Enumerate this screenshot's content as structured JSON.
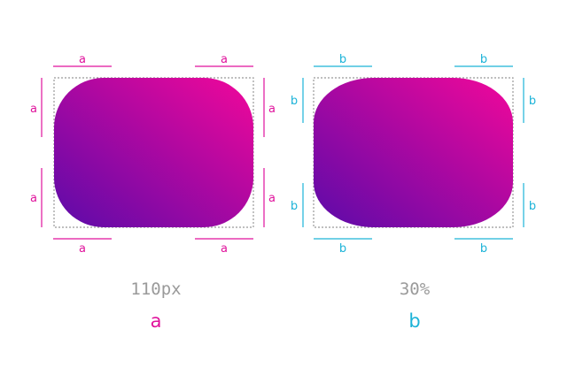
{
  "colors": {
    "a_accent": "#e0129c",
    "b_accent": "#1cb3d8",
    "gradient_start": "#5b0aa9",
    "gradient_end": "#f2079a",
    "outline": "#999999"
  },
  "examples": [
    {
      "value": "110px",
      "name": "a",
      "marker": "a"
    },
    {
      "value": "30%",
      "name": "b",
      "marker": "b"
    }
  ]
}
